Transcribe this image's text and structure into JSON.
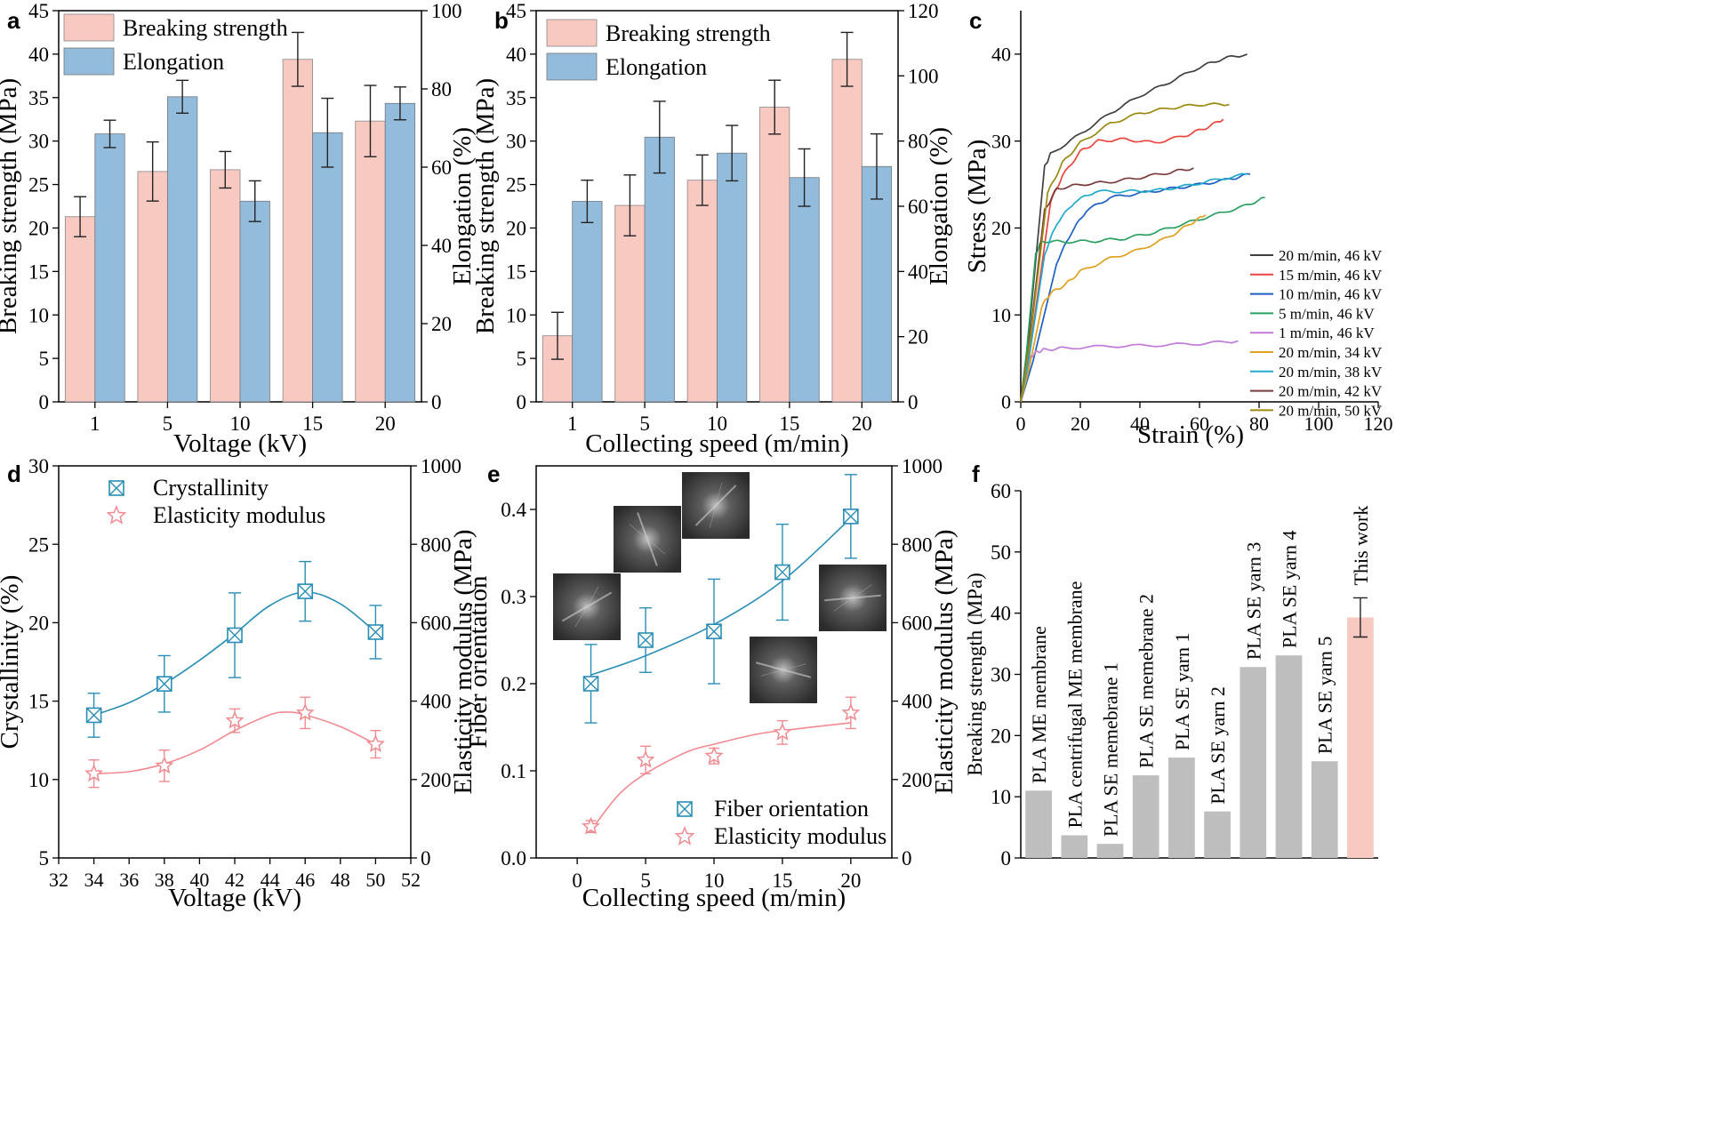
{
  "colors": {
    "breaking": "#f8c9c0",
    "elongation": "#93bcdc",
    "orientation": "#2a8db5",
    "modulus": "#f08a90",
    "gray_bar": "#bebebe",
    "this_work": "#f8c9c0"
  },
  "chart_data": [
    {
      "panel": "a",
      "type": "bar",
      "categories": [
        "1",
        "5",
        "10",
        "15",
        "20"
      ],
      "xlabel": "Voltage (kV)",
      "ylabel": "Breaking strength (MPa)",
      "y2label": "Elongation (%)",
      "ylim": [
        0,
        45
      ],
      "y2lim": [
        0,
        100
      ],
      "yticks": [
        0,
        5,
        10,
        15,
        20,
        25,
        30,
        35,
        40,
        45
      ],
      "y2ticks": [
        0,
        20,
        40,
        60,
        80,
        100
      ],
      "legend_position": "top-left",
      "series": [
        {
          "name": "Breaking strength",
          "axis": "left",
          "values": [
            21.3,
            26.5,
            26.7,
            39.4,
            32.3
          ],
          "errors": [
            2.3,
            3.4,
            2.1,
            3.1,
            4.1
          ]
        },
        {
          "name": "Elongation",
          "axis": "right",
          "values": [
            68.5,
            78,
            51.3,
            68.8,
            76.3
          ],
          "errors": [
            3.5,
            4.2,
            5.2,
            8.8,
            4.2
          ]
        }
      ]
    },
    {
      "panel": "b",
      "type": "bar",
      "categories": [
        "1",
        "5",
        "10",
        "15",
        "20"
      ],
      "xlabel": "Collecting speed (m/min)",
      "ylabel": "Breaking strength (MPa)",
      "y2label": "Elongation (%)",
      "ylim": [
        0,
        45
      ],
      "y2lim": [
        0,
        120
      ],
      "yticks": [
        0,
        5,
        10,
        15,
        20,
        25,
        30,
        35,
        40,
        45
      ],
      "y2ticks": [
        0,
        20,
        40,
        60,
        80,
        100,
        120
      ],
      "legend_position": "top-left",
      "series": [
        {
          "name": "Breaking strength",
          "axis": "left",
          "values": [
            7.6,
            22.6,
            25.5,
            33.9,
            39.4
          ],
          "errors": [
            2.7,
            3.5,
            2.9,
            3.1,
            3.1
          ]
        },
        {
          "name": "Elongation",
          "axis": "right",
          "values": [
            61.5,
            81.2,
            76.3,
            68.8,
            72.2
          ],
          "errors": [
            6.5,
            11,
            8.5,
            8.8,
            10
          ]
        }
      ]
    },
    {
      "panel": "c",
      "type": "line",
      "xlabel": "Strain (%)",
      "ylabel": "Stress (MPa)",
      "xlim": [
        0,
        120
      ],
      "ylim": [
        0,
        45
      ],
      "xticks": [
        0,
        20,
        40,
        60,
        80,
        100,
        120
      ],
      "yticks": [
        0,
        10,
        20,
        30,
        40
      ],
      "legend_position": "bottom-right",
      "series": [
        {
          "name": "20 m/min, 46 kV",
          "color": "#404040",
          "knee": [
            8,
            27
          ],
          "points": [
            [
              10,
              28.5
            ],
            [
              20,
              30.8
            ],
            [
              30,
              33.2
            ],
            [
              40,
              35.2
            ],
            [
              50,
              36.8
            ],
            [
              60,
              38.5
            ],
            [
              68,
              39.5
            ],
            [
              76,
              40
            ]
          ]
        },
        {
          "name": "15 m/min, 46 kV",
          "color": "#e8453c",
          "knee": [
            10,
            23
          ],
          "points": [
            [
              14,
              26
            ],
            [
              20,
              28.8
            ],
            [
              26,
              30
            ],
            [
              35,
              30.2
            ],
            [
              45,
              29.8
            ],
            [
              55,
              30.6
            ],
            [
              62,
              31.5
            ],
            [
              68,
              32.5
            ]
          ]
        },
        {
          "name": "10 m/min, 46 kV",
          "color": "#1f5fc2",
          "knee": [
            12,
            16
          ],
          "points": [
            [
              17,
              19.5
            ],
            [
              22,
              22
            ],
            [
              30,
              23.5
            ],
            [
              40,
              24
            ],
            [
              50,
              24.5
            ],
            [
              60,
              25
            ],
            [
              70,
              25.6
            ],
            [
              77,
              26.2
            ]
          ]
        },
        {
          "name": "5 m/min, 46 kV",
          "color": "#2aa060",
          "knee": [
            5,
            17
          ],
          "points": [
            [
              7,
              18.5
            ],
            [
              15,
              18.4
            ],
            [
              25,
              18.5
            ],
            [
              35,
              18.8
            ],
            [
              45,
              19.5
            ],
            [
              55,
              20.5
            ],
            [
              65,
              21.5
            ],
            [
              75,
              22.5
            ],
            [
              82,
              23.5
            ]
          ]
        },
        {
          "name": "1 m/min, 46 kV",
          "color": "#c27ad8",
          "knee": [
            3,
            5
          ],
          "points": [
            [
              5,
              5.7
            ],
            [
              8,
              6
            ],
            [
              15,
              6.2
            ],
            [
              30,
              6.4
            ],
            [
              45,
              6.5
            ],
            [
              60,
              6.7
            ],
            [
              73,
              7
            ]
          ]
        },
        {
          "name": "20 m/min, 34 kV",
          "color": "#e0a020",
          "knee": [
            7,
            11
          ],
          "points": [
            [
              10,
              12.5
            ],
            [
              15,
              13.5
            ],
            [
              20,
              15
            ],
            [
              30,
              16.5
            ],
            [
              40,
              17.5
            ],
            [
              50,
              19
            ],
            [
              57,
              20.5
            ],
            [
              62,
              21.5
            ]
          ]
        },
        {
          "name": "20 m/min, 38 kV",
          "color": "#22aacc",
          "knee": [
            8,
            17
          ],
          "points": [
            [
              12,
              20.5
            ],
            [
              18,
              23
            ],
            [
              25,
              24.2
            ],
            [
              35,
              24.2
            ],
            [
              45,
              24.3
            ],
            [
              55,
              24.8
            ],
            [
              65,
              25.5
            ],
            [
              76,
              26.2
            ]
          ]
        },
        {
          "name": "20 m/min, 42 kV",
          "color": "#7a3a3a",
          "knee": [
            8,
            22
          ],
          "points": [
            [
              12,
              24.5
            ],
            [
              20,
              25
            ],
            [
              30,
              25.3
            ],
            [
              40,
              25.8
            ],
            [
              50,
              26.4
            ],
            [
              58,
              26.9
            ]
          ]
        },
        {
          "name": "20 m/min, 50 kV",
          "color": "#9a8a10",
          "knee": [
            9,
            24
          ],
          "points": [
            [
              14,
              27.5
            ],
            [
              20,
              29.8
            ],
            [
              30,
              32
            ],
            [
              40,
              33.2
            ],
            [
              50,
              33.8
            ],
            [
              60,
              34.2
            ],
            [
              70,
              34.2
            ]
          ]
        }
      ]
    },
    {
      "panel": "d",
      "type": "scatter",
      "xlabel": "Voltage (kV)",
      "ylabel": "Crystallinity (%)",
      "y2label": "Elasticity modulus (MPa)",
      "xlim": [
        32,
        52
      ],
      "ylim": [
        5,
        30
      ],
      "y2lim": [
        0,
        1000
      ],
      "xticks": [
        32,
        34,
        36,
        38,
        40,
        42,
        44,
        46,
        48,
        50,
        52
      ],
      "yticks": [
        5,
        10,
        15,
        20,
        25,
        30
      ],
      "y2ticks": [
        0,
        200,
        400,
        600,
        800,
        1000
      ],
      "legend_position": "top-left",
      "series": [
        {
          "name": "Crystallinity",
          "axis": "left",
          "x": [
            34,
            38,
            42,
            46,
            50
          ],
          "values": [
            14.1,
            16.1,
            19.2,
            22,
            19.4
          ],
          "errors": [
            1.4,
            1.8,
            2.7,
            1.9,
            1.7
          ]
        },
        {
          "name": "Elasticity modulus",
          "axis": "right",
          "x": [
            34,
            38,
            42,
            46,
            50
          ],
          "values": [
            215,
            235,
            350,
            370,
            290
          ],
          "errors": [
            35,
            40,
            30,
            40,
            35
          ]
        }
      ]
    },
    {
      "panel": "e",
      "type": "scatter",
      "xlabel": "Collecting speed (m/min)",
      "ylabel": "Fiber orientation",
      "y2label": "Elasticity modulus (MPa)",
      "xlim": [
        -3,
        23
      ],
      "ylim": [
        0,
        0.45
      ],
      "y2lim": [
        0,
        1000
      ],
      "xticks": [
        0,
        5,
        10,
        15,
        20
      ],
      "yticks": [
        0.0,
        0.1,
        0.2,
        0.3,
        0.4
      ],
      "y2ticks": [
        0,
        200,
        400,
        600,
        800,
        1000
      ],
      "legend_position": "bottom-right",
      "series": [
        {
          "name": "Fiber orientation",
          "axis": "left",
          "x": [
            1,
            5,
            10,
            15,
            20
          ],
          "values": [
            0.2,
            0.25,
            0.26,
            0.328,
            0.392
          ],
          "errors": [
            0.045,
            0.037,
            0.06,
            0.055,
            0.048
          ]
        },
        {
          "name": "Elasticity modulus",
          "axis": "right",
          "x": [
            1,
            5,
            10,
            15,
            20
          ],
          "values": [
            80,
            250,
            260,
            320,
            370
          ],
          "errors": [
            15,
            35,
            20,
            30,
            40
          ]
        }
      ]
    },
    {
      "panel": "f",
      "type": "bar",
      "ylabel": "Breaking strength (MPa)",
      "ylim": [
        0,
        60
      ],
      "yticks": [
        0,
        10,
        20,
        30,
        40,
        50,
        60
      ],
      "categories": [
        "PLA ME membrane",
        "PLA centrifugal ME membrane",
        "PLA SE memebrane 1",
        "PLA SE memebrane 2",
        "PLA SE yarn 1",
        "PLA SE yarn 2",
        "PLA SE yarn 3",
        "PLA SE yarn 4",
        "PLA SE yarn 5",
        "This work"
      ],
      "values": [
        11,
        3.7,
        2.3,
        13.5,
        16.4,
        7.6,
        31.2,
        33.1,
        15.8,
        39.3
      ],
      "error_this_work": 3.2
    }
  ]
}
